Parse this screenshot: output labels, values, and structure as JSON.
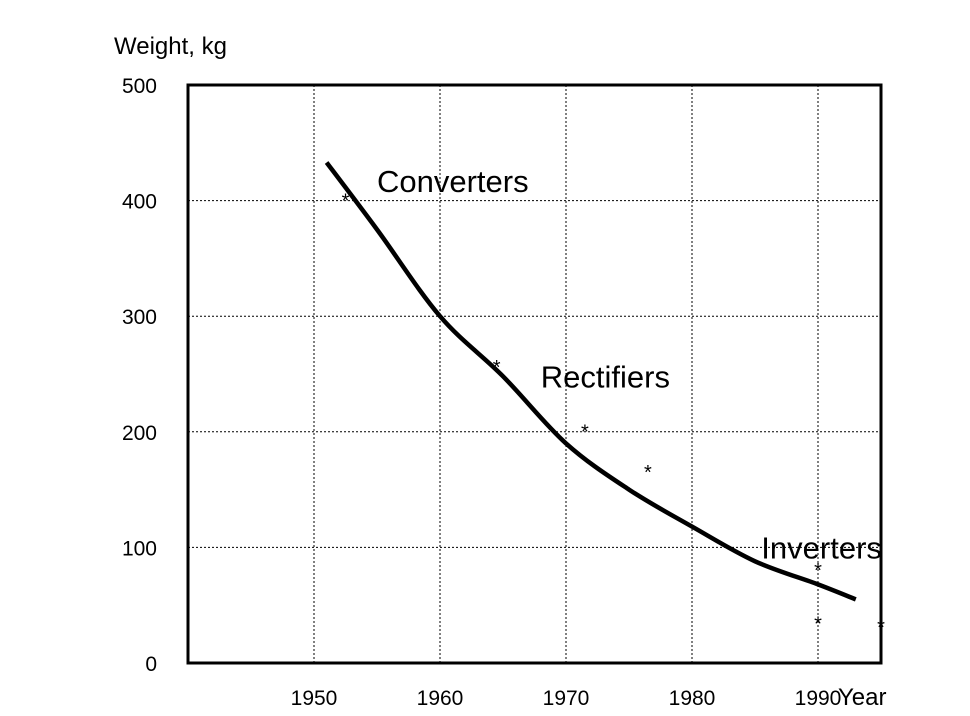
{
  "chart_data": {
    "type": "scatter",
    "ylabel": "Weight, kg",
    "xlabel": "Year",
    "x_ticks": [
      "1950",
      "1960",
      "1970",
      "1980",
      "1990"
    ],
    "y_ticks": [
      "0",
      "100",
      "200",
      "300",
      "400",
      "500"
    ],
    "xlim": [
      1940,
      1995
    ],
    "ylim": [
      0,
      500
    ],
    "grid": true,
    "points": [
      {
        "x": 1952.5,
        "y": 402
      },
      {
        "x": 1964.5,
        "y": 258
      },
      {
        "x": 1971.5,
        "y": 202
      },
      {
        "x": 1976.5,
        "y": 167
      },
      {
        "x": 1990,
        "y": 82
      },
      {
        "x": 1990,
        "y": 36
      },
      {
        "x": 1995,
        "y": 33
      }
    ],
    "point_marker": "*",
    "trend_curve": [
      {
        "x": 1951,
        "y": 433
      },
      {
        "x": 1955,
        "y": 375
      },
      {
        "x": 1960,
        "y": 300
      },
      {
        "x": 1965,
        "y": 248
      },
      {
        "x": 1970,
        "y": 190
      },
      {
        "x": 1975,
        "y": 150
      },
      {
        "x": 1980,
        "y": 118
      },
      {
        "x": 1985,
        "y": 88
      },
      {
        "x": 1990,
        "y": 68
      },
      {
        "x": 1993,
        "y": 55
      }
    ],
    "annotations": [
      {
        "text": "Converters",
        "x": 1955,
        "y": 417
      },
      {
        "text": "Rectifiers",
        "x": 1968,
        "y": 248
      },
      {
        "text": "Inverters",
        "x": 1985.5,
        "y": 100
      }
    ]
  }
}
